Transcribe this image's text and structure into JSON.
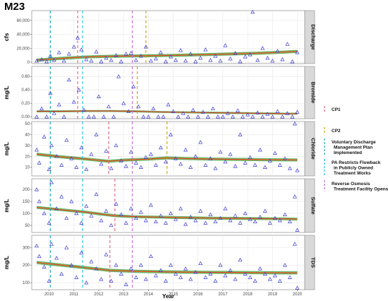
{
  "title": "M23",
  "x_axis": {
    "label": "Year",
    "ticks": [
      2010,
      2011,
      2012,
      2013,
      2014,
      2015,
      2016,
      2017,
      2018,
      2019,
      2020
    ],
    "range": [
      2009.3,
      2020.3
    ]
  },
  "colors": {
    "points": "#3b3bd1",
    "trend": "#e3382a",
    "band": "#2f9e3a",
    "band_inner": "#d7c63a",
    "cp1": "#e0607a",
    "cp2": "#c8a400",
    "vdmp": "#1aaab2",
    "pa": "#18c0e0",
    "ro": "#cc66dd"
  },
  "legend": [
    {
      "key": "cp1",
      "label_lines": [
        "CP1"
      ]
    },
    {
      "key": "cp2",
      "label_lines": [
        "CP2"
      ]
    },
    {
      "key": "vdmp",
      "label_lines": [
        "Voluntary Discharge",
        "Management Plan",
        "Implemented"
      ]
    },
    {
      "key": "pa",
      "label_lines": [
        "PA Restricts Flowback",
        "in Publicly Owned",
        "Treatment Works"
      ]
    },
    {
      "key": "ro",
      "label_lines": [
        "Reverse Osmosis",
        "Treatment Facility Opens"
      ]
    }
  ],
  "chart_data": [
    {
      "type": "scatter",
      "facet": "Discharge",
      "ylabel": "cfs",
      "ylim": [
        -2000,
        74000
      ],
      "yticks": [
        0,
        20000,
        40000,
        60000
      ],
      "ytick_labels": [
        "0",
        "20,000",
        "40,000",
        "60,000"
      ],
      "events": [
        {
          "key": "vdmp",
          "x": 2010.05
        },
        {
          "key": "cp1",
          "x": 2011.15
        },
        {
          "key": "pa",
          "x": 2011.35
        },
        {
          "key": "ro",
          "x": 2013.35
        },
        {
          "key": "cp2",
          "x": 2013.9
        }
      ],
      "trend": {
        "x": [
          2009.5,
          2010.5,
          2011.5,
          2012.5,
          2013.5,
          2014.5,
          2015.5,
          2016.5,
          2017.5,
          2018.5,
          2019.5,
          2020.0
        ],
        "y": [
          3000,
          5500,
          7500,
          8500,
          9000,
          9500,
          10200,
          11000,
          12000,
          13000,
          14500,
          15500
        ],
        "band": 2200
      },
      "points": {
        "x": [
          2009.5,
          2009.7,
          2009.9,
          2010.05,
          2010.2,
          2010.4,
          2010.6,
          2010.8,
          2011.0,
          2011.15,
          2011.3,
          2011.5,
          2011.7,
          2011.9,
          2012.1,
          2012.3,
          2012.5,
          2012.7,
          2012.9,
          2013.1,
          2013.3,
          2013.5,
          2013.7,
          2013.9,
          2014.1,
          2014.3,
          2014.5,
          2014.7,
          2014.9,
          2015.1,
          2015.3,
          2015.5,
          2015.7,
          2015.9,
          2016.1,
          2016.3,
          2016.5,
          2016.7,
          2016.9,
          2017.1,
          2017.3,
          2017.5,
          2017.7,
          2017.9,
          2018.1,
          2018.2,
          2018.4,
          2018.6,
          2018.8,
          2019.0,
          2019.2,
          2019.4,
          2019.6,
          2019.8,
          2020.0
        ],
        "y": [
          2000,
          4000,
          1000,
          9000,
          3000,
          14000,
          2000,
          12000,
          22000,
          35000,
          18000,
          4000,
          2000,
          15000,
          1000,
          6000,
          3000,
          10000,
          1000,
          12000,
          13000,
          3000,
          9000,
          22000,
          2000,
          5000,
          14000,
          1000,
          8000,
          3000,
          17000,
          2000,
          12000,
          1000,
          6000,
          18000,
          3000,
          9000,
          2000,
          24000,
          5000,
          13000,
          1000,
          8000,
          11000,
          72000,
          3000,
          20000,
          6000,
          2000,
          16000,
          4000,
          26000,
          1000,
          14000
        ]
      }
    },
    {
      "type": "scatter",
      "facet": "Bromide",
      "ylabel": "mg/L",
      "ylim": [
        -0.03,
        0.75
      ],
      "yticks": [
        0.0,
        0.2,
        0.4,
        0.6
      ],
      "ytick_labels": [
        "0.00",
        "0.20",
        "0.40",
        "0.60"
      ],
      "events": [
        {
          "key": "vdmp",
          "x": 2010.05
        },
        {
          "key": "cp1",
          "x": 2011.15
        },
        {
          "key": "pa",
          "x": 2011.35
        },
        {
          "key": "ro",
          "x": 2013.35
        },
        {
          "key": "cp2",
          "x": 2013.55
        }
      ],
      "trend": {
        "x": [
          2009.5,
          2010.5,
          2011.5,
          2012.5,
          2013.5,
          2014.5,
          2015.5,
          2016.5,
          2017.5,
          2018.5,
          2019.5,
          2020.0
        ],
        "y": [
          0.08,
          0.08,
          0.085,
          0.085,
          0.08,
          0.07,
          0.065,
          0.06,
          0.055,
          0.05,
          0.045,
          0.045
        ],
        "band": 0.015
      },
      "points": {
        "x": [
          2009.5,
          2009.7,
          2009.9,
          2010.05,
          2010.2,
          2010.4,
          2010.6,
          2010.8,
          2011.0,
          2011.2,
          2011.4,
          2011.6,
          2011.8,
          2012.0,
          2012.2,
          2012.4,
          2012.6,
          2012.8,
          2013.0,
          2013.2,
          2013.4,
          2013.6,
          2013.8,
          2014.0,
          2014.2,
          2014.4,
          2014.6,
          2014.8,
          2015.0,
          2015.2,
          2015.4,
          2015.6,
          2015.8,
          2016.0,
          2016.2,
          2016.4,
          2016.6,
          2016.8,
          2017.0,
          2017.2,
          2017.4,
          2017.6,
          2017.8,
          2018.0,
          2018.2,
          2018.4,
          2018.6,
          2018.8,
          2019.0,
          2019.2,
          2019.4,
          2019.6,
          2019.8,
          2020.0
        ],
        "y": [
          0.0,
          0.12,
          0.0,
          0.35,
          0.05,
          0.18,
          0.0,
          0.55,
          0.22,
          0.4,
          0.1,
          0.0,
          0.0,
          0.3,
          0.0,
          0.15,
          0.0,
          0.6,
          0.2,
          0.08,
          0.45,
          0.15,
          0.0,
          0.0,
          0.12,
          0.0,
          0.0,
          0.18,
          0.08,
          0.0,
          0.05,
          0.0,
          0.1,
          0.0,
          0.07,
          0.0,
          0.12,
          0.0,
          0.0,
          0.05,
          0.0,
          0.09,
          0.0,
          0.03,
          0.0,
          0.06,
          0.0,
          0.04,
          0.0,
          0.08,
          0.0,
          0.05,
          0.0,
          0.07
        ]
      }
    },
    {
      "type": "scatter",
      "facet": "Chloride",
      "ylabel": "mg/L",
      "ylim": [
        2,
        52
      ],
      "yticks": [
        10,
        20,
        30,
        40,
        50
      ],
      "ytick_labels": [
        "10",
        "20",
        "30",
        "40",
        "50"
      ],
      "events": [
        {
          "key": "vdmp",
          "x": 2010.05
        },
        {
          "key": "pa",
          "x": 2011.35
        },
        {
          "key": "cp1",
          "x": 2012.4
        },
        {
          "key": "ro",
          "x": 2013.35
        },
        {
          "key": "cp2",
          "x": 2014.75
        }
      ],
      "trend": {
        "x": [
          2009.5,
          2010.5,
          2011.5,
          2012.4,
          2013.0,
          2014.0,
          2014.75,
          2015.5,
          2016.5,
          2017.5,
          2018.5,
          2019.5,
          2020.0
        ],
        "y": [
          22,
          19.5,
          17.5,
          15.5,
          16.5,
          17.5,
          18.5,
          18.0,
          17.5,
          17.2,
          17.0,
          16.8,
          16.7
        ],
        "band": 1.4
      },
      "points": {
        "x": [
          2009.5,
          2009.6,
          2009.8,
          2010.0,
          2010.1,
          2010.3,
          2010.5,
          2010.7,
          2010.9,
          2011.1,
          2011.3,
          2011.5,
          2011.7,
          2011.9,
          2012.1,
          2012.3,
          2012.5,
          2012.7,
          2012.9,
          2013.1,
          2013.3,
          2013.5,
          2013.7,
          2013.9,
          2014.1,
          2014.3,
          2014.5,
          2014.7,
          2014.9,
          2015.1,
          2015.3,
          2015.5,
          2015.7,
          2015.9,
          2016.1,
          2016.3,
          2016.5,
          2016.7,
          2016.9,
          2017.1,
          2017.3,
          2017.5,
          2017.7,
          2017.9,
          2018.1,
          2018.3,
          2018.5,
          2018.7,
          2018.9,
          2019.1,
          2019.3,
          2019.5,
          2019.7,
          2019.9,
          2020.0
        ],
        "y": [
          26,
          14,
          38,
          8,
          30,
          20,
          12,
          35,
          18,
          10,
          28,
          8,
          22,
          40,
          13,
          25,
          9,
          30,
          16,
          11,
          24,
          14,
          10,
          19,
          22,
          12,
          28,
          15,
          40,
          18,
          13,
          26,
          10,
          20,
          33,
          12,
          18,
          9,
          24,
          15,
          22,
          11,
          40,
          14,
          19,
          12,
          26,
          10,
          16,
          23,
          12,
          18,
          9,
          50,
          7
        ]
      }
    },
    {
      "type": "scatter",
      "facet": "Sulfate",
      "ylabel": "mg/L",
      "ylim": [
        20,
        245
      ],
      "yticks": [
        50,
        100,
        150,
        200
      ],
      "ytick_labels": [
        "50",
        "100",
        "150",
        "200"
      ],
      "events": [
        {
          "key": "vdmp",
          "x": 2010.05
        },
        {
          "key": "pa",
          "x": 2011.35
        },
        {
          "key": "cp1",
          "x": 2012.65
        },
        {
          "key": "ro",
          "x": 2013.35
        }
      ],
      "trend": {
        "x": [
          2009.5,
          2010.5,
          2011.5,
          2012.0,
          2012.65,
          2013.5,
          2014.5,
          2015.5,
          2016.5,
          2017.5,
          2018.5,
          2019.5,
          2020.0
        ],
        "y": [
          125,
          115,
          105,
          98,
          90,
          86,
          84,
          82,
          80,
          79,
          78,
          77,
          76
        ],
        "band": 6
      },
      "points": {
        "x": [
          2009.5,
          2009.6,
          2009.8,
          2010.0,
          2010.1,
          2010.3,
          2010.5,
          2010.7,
          2010.9,
          2011.1,
          2011.3,
          2011.5,
          2011.7,
          2011.9,
          2012.1,
          2012.3,
          2012.5,
          2012.7,
          2012.9,
          2013.1,
          2013.3,
          2013.5,
          2013.7,
          2013.9,
          2014.1,
          2014.3,
          2014.5,
          2014.7,
          2014.9,
          2015.1,
          2015.3,
          2015.5,
          2015.7,
          2015.9,
          2016.1,
          2016.3,
          2016.5,
          2016.7,
          2016.9,
          2017.1,
          2017.3,
          2017.5,
          2017.7,
          2017.9,
          2018.1,
          2018.3,
          2018.5,
          2018.7,
          2018.9,
          2019.1,
          2019.3,
          2019.5,
          2019.7,
          2019.9,
          2020.0
        ],
        "y": [
          200,
          150,
          100,
          60,
          230,
          120,
          170,
          80,
          150,
          100,
          60,
          130,
          90,
          180,
          70,
          110,
          50,
          140,
          95,
          60,
          120,
          80,
          105,
          70,
          135,
          65,
          90,
          60,
          100,
          75,
          120,
          55,
          85,
          70,
          110,
          60,
          95,
          65,
          80,
          120,
          70,
          90,
          60,
          100,
          75,
          65,
          85,
          110,
          60,
          80,
          70,
          95,
          65,
          170,
          30
        ]
      }
    },
    {
      "type": "scatter",
      "facet": "TDS",
      "ylabel": "mg/L",
      "ylim": [
        60,
        370
      ],
      "yticks": [
        100,
        200,
        300
      ],
      "ytick_labels": [
        "100",
        "200",
        "300"
      ],
      "events": [
        {
          "key": "vdmp",
          "x": 2010.05
        },
        {
          "key": "pa",
          "x": 2011.35
        },
        {
          "key": "cp1",
          "x": 2012.45
        },
        {
          "key": "ro",
          "x": 2013.35
        }
      ],
      "trend": {
        "x": [
          2009.5,
          2010.5,
          2011.5,
          2012.45,
          2013.5,
          2014.5,
          2015.5,
          2016.5,
          2017.5,
          2018.5,
          2019.5,
          2020.0
        ],
        "y": [
          215,
          200,
          185,
          170,
          165,
          162,
          160,
          159,
          158,
          157,
          156,
          156
        ],
        "band": 9
      },
      "points": {
        "x": [
          2009.5,
          2009.6,
          2009.8,
          2010.0,
          2010.1,
          2010.3,
          2010.5,
          2010.7,
          2010.9,
          2011.1,
          2011.3,
          2011.5,
          2011.7,
          2011.9,
          2012.1,
          2012.3,
          2012.5,
          2012.7,
          2012.9,
          2013.1,
          2013.3,
          2013.5,
          2013.7,
          2013.9,
          2014.1,
          2014.3,
          2014.5,
          2014.7,
          2014.9,
          2015.1,
          2015.3,
          2015.5,
          2015.7,
          2015.9,
          2016.1,
          2016.3,
          2016.5,
          2016.7,
          2016.9,
          2017.1,
          2017.3,
          2017.5,
          2017.7,
          2017.9,
          2018.1,
          2018.3,
          2018.5,
          2018.7,
          2018.9,
          2019.1,
          2019.3,
          2019.5,
          2019.7,
          2019.9,
          2020.0
        ],
        "y": [
          310,
          250,
          190,
          110,
          320,
          240,
          150,
          300,
          200,
          130,
          270,
          100,
          220,
          180,
          120,
          260,
          110,
          200,
          150,
          90,
          180,
          130,
          200,
          120,
          250,
          140,
          170,
          110,
          200,
          150,
          130,
          180,
          120,
          160,
          210,
          130,
          150,
          110,
          200,
          140,
          170,
          120,
          230,
          150,
          130,
          110,
          180,
          150,
          120,
          140,
          110,
          200,
          130,
          320,
          70
        ]
      }
    }
  ]
}
